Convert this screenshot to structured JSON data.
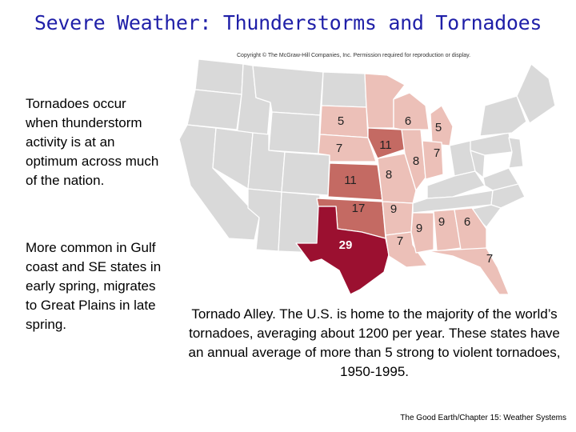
{
  "slide": {
    "title": "Severe Weather: Thunderstorms and Tornadoes",
    "paragraph1": "Tornadoes occur when thunderstorm activity is at an optimum across much of the nation.",
    "paragraph2": "More common in Gulf coast and SE states in early spring, migrates to Great Plains in late spring.",
    "caption": "Tornado Alley.  The U.S. is home to the majority of the world’s tornadoes, averaging about 1200 per year.  These states have an annual average of more than 5 strong to violent tornadoes, 1950-1995.",
    "footer": "The Good Earth/Chapter 15: Weather Systems"
  },
  "map": {
    "copyright": "Copyright © The McGraw-Hill Companies, Inc. Permission required for reproduction or display.",
    "colors": {
      "base": "#d9d9d9",
      "light": "#ecc0b8",
      "medium": "#c46a63",
      "dark": "#9b1030",
      "border": "#ffffff"
    },
    "states": [
      {
        "id": "south-dakota",
        "value": "5",
        "level": "light"
      },
      {
        "id": "nebraska",
        "value": "7",
        "level": "light"
      },
      {
        "id": "kansas",
        "value": "11",
        "level": "medium"
      },
      {
        "id": "oklahoma",
        "value": "17",
        "level": "medium"
      },
      {
        "id": "texas",
        "value": "29",
        "level": "dark"
      },
      {
        "id": "minnesota",
        "value": "",
        "level": "light"
      },
      {
        "id": "iowa",
        "value": "11",
        "level": "medium"
      },
      {
        "id": "missouri",
        "value": "8",
        "level": "light"
      },
      {
        "id": "arkansas",
        "value": "9",
        "level": "light"
      },
      {
        "id": "louisiana",
        "value": "7",
        "level": "light"
      },
      {
        "id": "wisconsin",
        "value": "6",
        "level": "light"
      },
      {
        "id": "illinois",
        "value": "8",
        "level": "light"
      },
      {
        "id": "michigan",
        "value": "5",
        "level": "light"
      },
      {
        "id": "indiana",
        "value": "7",
        "level": "light"
      },
      {
        "id": "mississippi",
        "value": "9",
        "level": "light"
      },
      {
        "id": "alabama",
        "value": "9",
        "level": "light"
      },
      {
        "id": "georgia",
        "value": "6",
        "level": "light"
      },
      {
        "id": "florida",
        "value": "7",
        "level": "light"
      }
    ]
  }
}
